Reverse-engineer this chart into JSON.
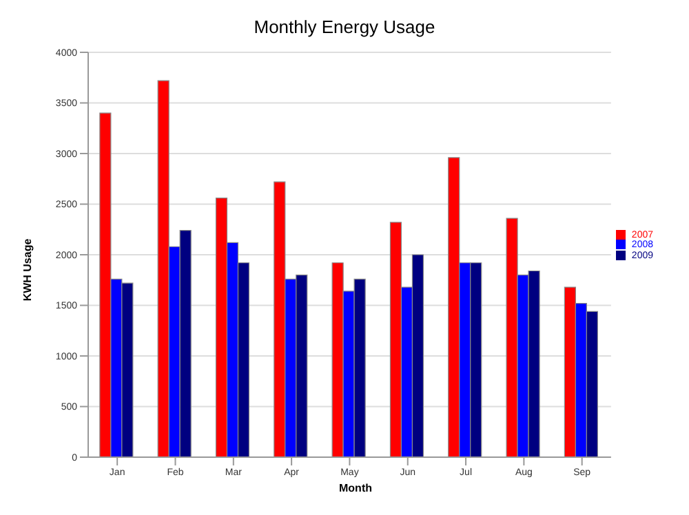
{
  "chart_data": {
    "type": "bar",
    "title": "Monthly Energy Usage",
    "xlabel": "Month",
    "ylabel": "KWH Usage",
    "categories": [
      "Jan",
      "Feb",
      "Mar",
      "Apr",
      "May",
      "Jun",
      "Jul",
      "Aug",
      "Sep"
    ],
    "series": [
      {
        "name": "2007",
        "color": "#ff0000",
        "values": [
          3400,
          3720,
          2560,
          2720,
          1920,
          2320,
          2960,
          2360,
          1680
        ]
      },
      {
        "name": "2008",
        "color": "#0000ff",
        "values": [
          1760,
          2080,
          2120,
          1760,
          1640,
          1680,
          1920,
          1800,
          1520
        ]
      },
      {
        "name": "2009",
        "color": "#000080",
        "values": [
          1720,
          2240,
          1920,
          1800,
          1760,
          2000,
          1920,
          1840,
          1440
        ]
      }
    ],
    "ylim": [
      0,
      4000
    ],
    "yticks": [
      0,
      500,
      1000,
      1500,
      2000,
      2500,
      3000,
      3500,
      4000
    ],
    "grid": "y",
    "legend": "right"
  }
}
